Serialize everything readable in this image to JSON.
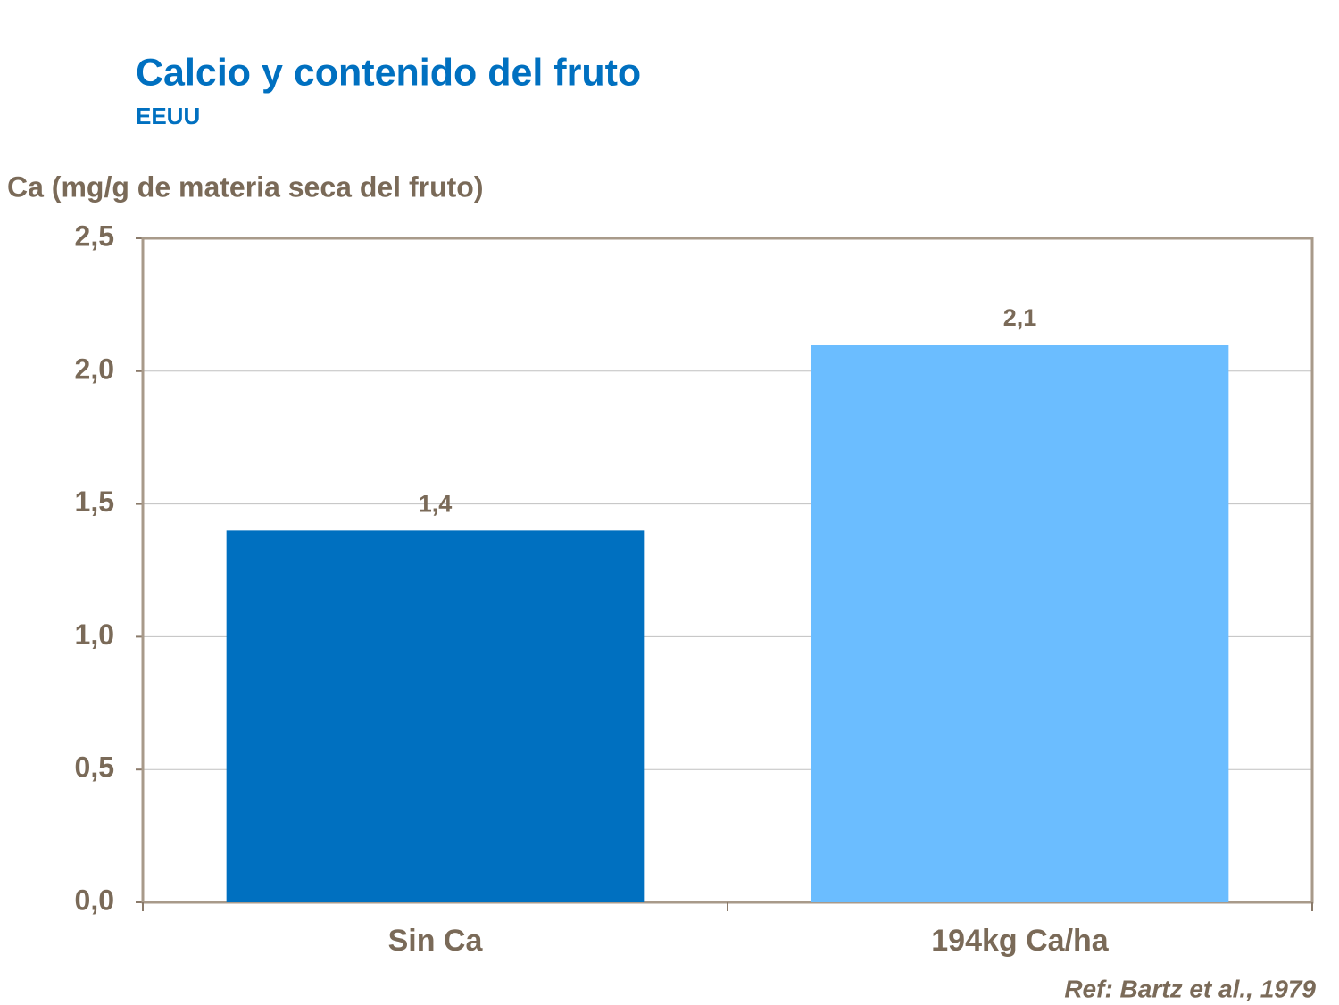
{
  "chart_data": {
    "type": "bar",
    "title": "Calcio y contenido del fruto",
    "subtitle": "EEUU",
    "y_label": "Ca (mg/g de materia seca del fruto)",
    "annotation": "Ref: Bartz et al., 1979",
    "categories": [
      "Sin Ca",
      "194kg Ca/ha"
    ],
    "values": [
      1.4,
      2.1
    ],
    "value_labels": [
      "1,4",
      "2,1"
    ],
    "colors": [
      "#0070c0",
      "#6bbdff"
    ],
    "ylim": [
      0,
      2.5
    ],
    "yticks": [
      {
        "value": 0,
        "label": "0,0"
      },
      {
        "value": 0.5,
        "label": "0,5"
      },
      {
        "value": 1,
        "label": "1,0"
      },
      {
        "value": 1.5,
        "label": "1,5"
      },
      {
        "value": 2,
        "label": "2,0"
      },
      {
        "value": 2.5,
        "label": "2,5"
      }
    ],
    "grid": true
  }
}
